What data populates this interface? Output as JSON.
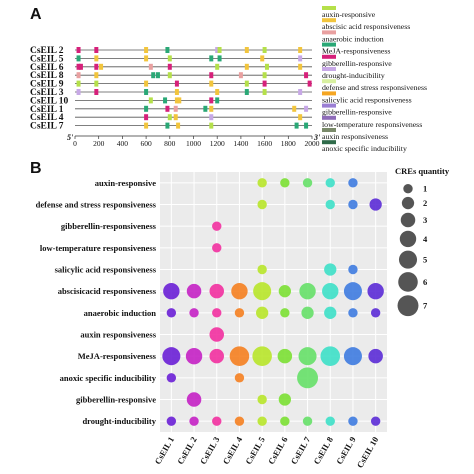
{
  "panels": {
    "a_label": "A",
    "b_label": "B"
  },
  "chart_data": [
    {
      "type": "track-map",
      "genes": [
        "CsEIL 2",
        "CsEIL 5",
        "CsEIL 6",
        "CsEIL 8",
        "CsEIL 9",
        "CsEIL 3",
        "CsEIL 10",
        "CsEIL 1",
        "CsEIL 4",
        "CsEIL 7"
      ],
      "axis": {
        "start_label": "5'",
        "end_label": "3'",
        "ticks": [
          0,
          200,
          400,
          600,
          800,
          1000,
          1200,
          1400,
          1600,
          1800,
          2000
        ],
        "xlim": [
          0,
          2000
        ]
      },
      "legend": [
        {
          "label": "auxin-responsive",
          "color": "#b5e04a"
        },
        {
          "label": "abscisic acid responsiveness",
          "color": "#f2c53d"
        },
        {
          "label": "anaerobic induction",
          "color": "#e9a0a0"
        },
        {
          "label": "MeJA-responsiveness",
          "color": "#2aa876"
        },
        {
          "label": "gibberellin-responsive",
          "color": "#d6207a"
        },
        {
          "label": "drought-inducibility",
          "color": "#c7a8e6"
        },
        {
          "label": "defense and stress responsiveness",
          "color": "#d8f0a0"
        },
        {
          "label": "salicylic acid responsiveness",
          "color": "#f5a623"
        },
        {
          "label": "gibberellin-responsive",
          "color": "#9b7fd4"
        },
        {
          "label": "low-temperature responsiveness",
          "color": "#8e6bb8"
        },
        {
          "label": "auxin responsiveness",
          "color": "#7a8a6a"
        },
        {
          "label": "anoxic specific inducibility",
          "color": "#2f6b4a"
        }
      ],
      "motifs": [
        [
          [
            30,
            4
          ],
          [
            180,
            4
          ],
          [
            600,
            1
          ],
          [
            780,
            3
          ],
          [
            1200,
            5
          ],
          [
            1220,
            0
          ],
          [
            1450,
            1
          ],
          [
            1600,
            0
          ],
          [
            1900,
            1
          ]
        ],
        [
          [
            30,
            3
          ],
          [
            180,
            1
          ],
          [
            600,
            1
          ],
          [
            800,
            0
          ],
          [
            1150,
            3
          ],
          [
            1220,
            3
          ],
          [
            1580,
            1
          ],
          [
            1900,
            5
          ]
        ],
        [
          [
            30,
            4
          ],
          [
            50,
            4
          ],
          [
            180,
            4
          ],
          [
            220,
            1
          ],
          [
            640,
            2
          ],
          [
            800,
            4
          ],
          [
            1200,
            0
          ],
          [
            1450,
            1
          ],
          [
            1620,
            0
          ],
          [
            1900,
            1
          ]
        ],
        [
          [
            30,
            2
          ],
          [
            180,
            1
          ],
          [
            660,
            3
          ],
          [
            700,
            3
          ],
          [
            800,
            0
          ],
          [
            1150,
            4
          ],
          [
            1400,
            2
          ],
          [
            1600,
            0
          ],
          [
            1950,
            4
          ]
        ],
        [
          [
            30,
            0
          ],
          [
            180,
            0
          ],
          [
            600,
            1
          ],
          [
            860,
            4
          ],
          [
            1150,
            1
          ],
          [
            1450,
            0
          ],
          [
            1600,
            4
          ],
          [
            1980,
            4
          ]
        ],
        [
          [
            30,
            5
          ],
          [
            180,
            4
          ],
          [
            600,
            3
          ],
          [
            860,
            1
          ],
          [
            1200,
            1
          ],
          [
            1450,
            3
          ],
          [
            1600,
            0
          ],
          [
            1900,
            5
          ]
        ],
        [
          [
            640,
            0
          ],
          [
            760,
            3
          ],
          [
            860,
            1
          ],
          [
            880,
            1
          ],
          [
            1150,
            4
          ],
          [
            1200,
            3
          ]
        ],
        [
          [
            600,
            3
          ],
          [
            780,
            4
          ],
          [
            850,
            2
          ],
          [
            1100,
            3
          ],
          [
            1150,
            1
          ],
          [
            1850,
            1
          ],
          [
            1950,
            5
          ]
        ],
        [
          [
            600,
            4
          ],
          [
            800,
            0
          ],
          [
            850,
            1
          ],
          [
            1150,
            5
          ],
          [
            1900,
            1
          ]
        ],
        [
          [
            600,
            1
          ],
          [
            780,
            3
          ],
          [
            870,
            1
          ],
          [
            1150,
            0
          ],
          [
            1870,
            3
          ],
          [
            1950,
            3
          ]
        ]
      ]
    },
    {
      "type": "scatter",
      "subtype": "bubble",
      "categories": [
        "CsEIL 1",
        "CsEIL 2",
        "CsEIL 3",
        "CsEIL 4",
        "CsEIL 5",
        "CsEIL 6",
        "CsEIL 7",
        "CsEIL 8",
        "CsEIL 9",
        "CsEIL 10"
      ],
      "cre_types": [
        "auxin-responsive",
        "defense and stress responsiveness",
        "gibberellin-responsiveness",
        "low-temperature responsiveness",
        "salicylic acid responsiveness",
        "abscisicacid responsiveness",
        "anaerobic induction",
        "auxin responsiveness",
        "MeJA-responsiveness",
        "anoxic specific inducibility",
        "gibberellin-responsive",
        "drought-inducibility"
      ],
      "gene_colors": [
        "#6a1fd6",
        "#c421c4",
        "#f230a0",
        "#f58020",
        "#b8e62a",
        "#7be033",
        "#66e068",
        "#3de0c8",
        "#3e7be0",
        "#5b2bd6"
      ],
      "legend_title": "CREs quantity",
      "size_legend": [
        1,
        2,
        3,
        4,
        5,
        6,
        7
      ],
      "quantities": [
        [
          0,
          0,
          0,
          0,
          1,
          1,
          1,
          1,
          1,
          0
        ],
        [
          0,
          0,
          0,
          0,
          1,
          0,
          0,
          1,
          1,
          2
        ],
        [
          0,
          0,
          1,
          0,
          0,
          0,
          0,
          0,
          0,
          0
        ],
        [
          0,
          0,
          1,
          0,
          0,
          0,
          0,
          0,
          0,
          0
        ],
        [
          0,
          0,
          0,
          0,
          1,
          0,
          0,
          2,
          1,
          0
        ],
        [
          4,
          3,
          3,
          4,
          5,
          2,
          4,
          4,
          5,
          4
        ],
        [
          1,
          1,
          1,
          1,
          2,
          1,
          2,
          2,
          1,
          1
        ],
        [
          0,
          0,
          3,
          0,
          0,
          0,
          0,
          0,
          0,
          0
        ],
        [
          5,
          4,
          3,
          6,
          6,
          3,
          5,
          6,
          5,
          3
        ],
        [
          1,
          0,
          0,
          1,
          0,
          0,
          7,
          0,
          0,
          0
        ],
        [
          0,
          3,
          0,
          0,
          1,
          2,
          0,
          0,
          0,
          0
        ],
        [
          1,
          1,
          1,
          1,
          1,
          1,
          1,
          1,
          1,
          1
        ]
      ]
    }
  ]
}
